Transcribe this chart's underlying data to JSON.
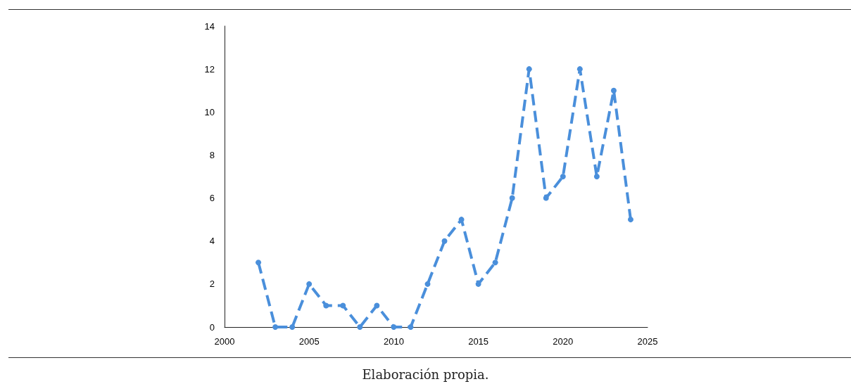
{
  "chart_data": {
    "type": "line",
    "x": [
      2002,
      2003,
      2004,
      2005,
      2006,
      2007,
      2008,
      2009,
      2010,
      2011,
      2012,
      2013,
      2014,
      2015,
      2016,
      2017,
      2018,
      2019,
      2020,
      2021,
      2022,
      2023,
      2024
    ],
    "series": [
      {
        "color": "#4a8fdb",
        "values": [
          3,
          0,
          0,
          2,
          1,
          1,
          0,
          1,
          0,
          0,
          2,
          4,
          5,
          2,
          3,
          6,
          12,
          6,
          7,
          12,
          7,
          11,
          5
        ]
      }
    ],
    "xlim": [
      2000,
      2025
    ],
    "xticks": [
      2000,
      2005,
      2010,
      2015,
      2020,
      2025
    ],
    "ylim": [
      0,
      14
    ],
    "yticks": [
      0,
      2,
      4,
      6,
      8,
      10,
      12,
      14
    ],
    "grid": false,
    "marker": "circle",
    "line_style": "dashed",
    "annotations": [
      "Elaboración propia."
    ]
  }
}
